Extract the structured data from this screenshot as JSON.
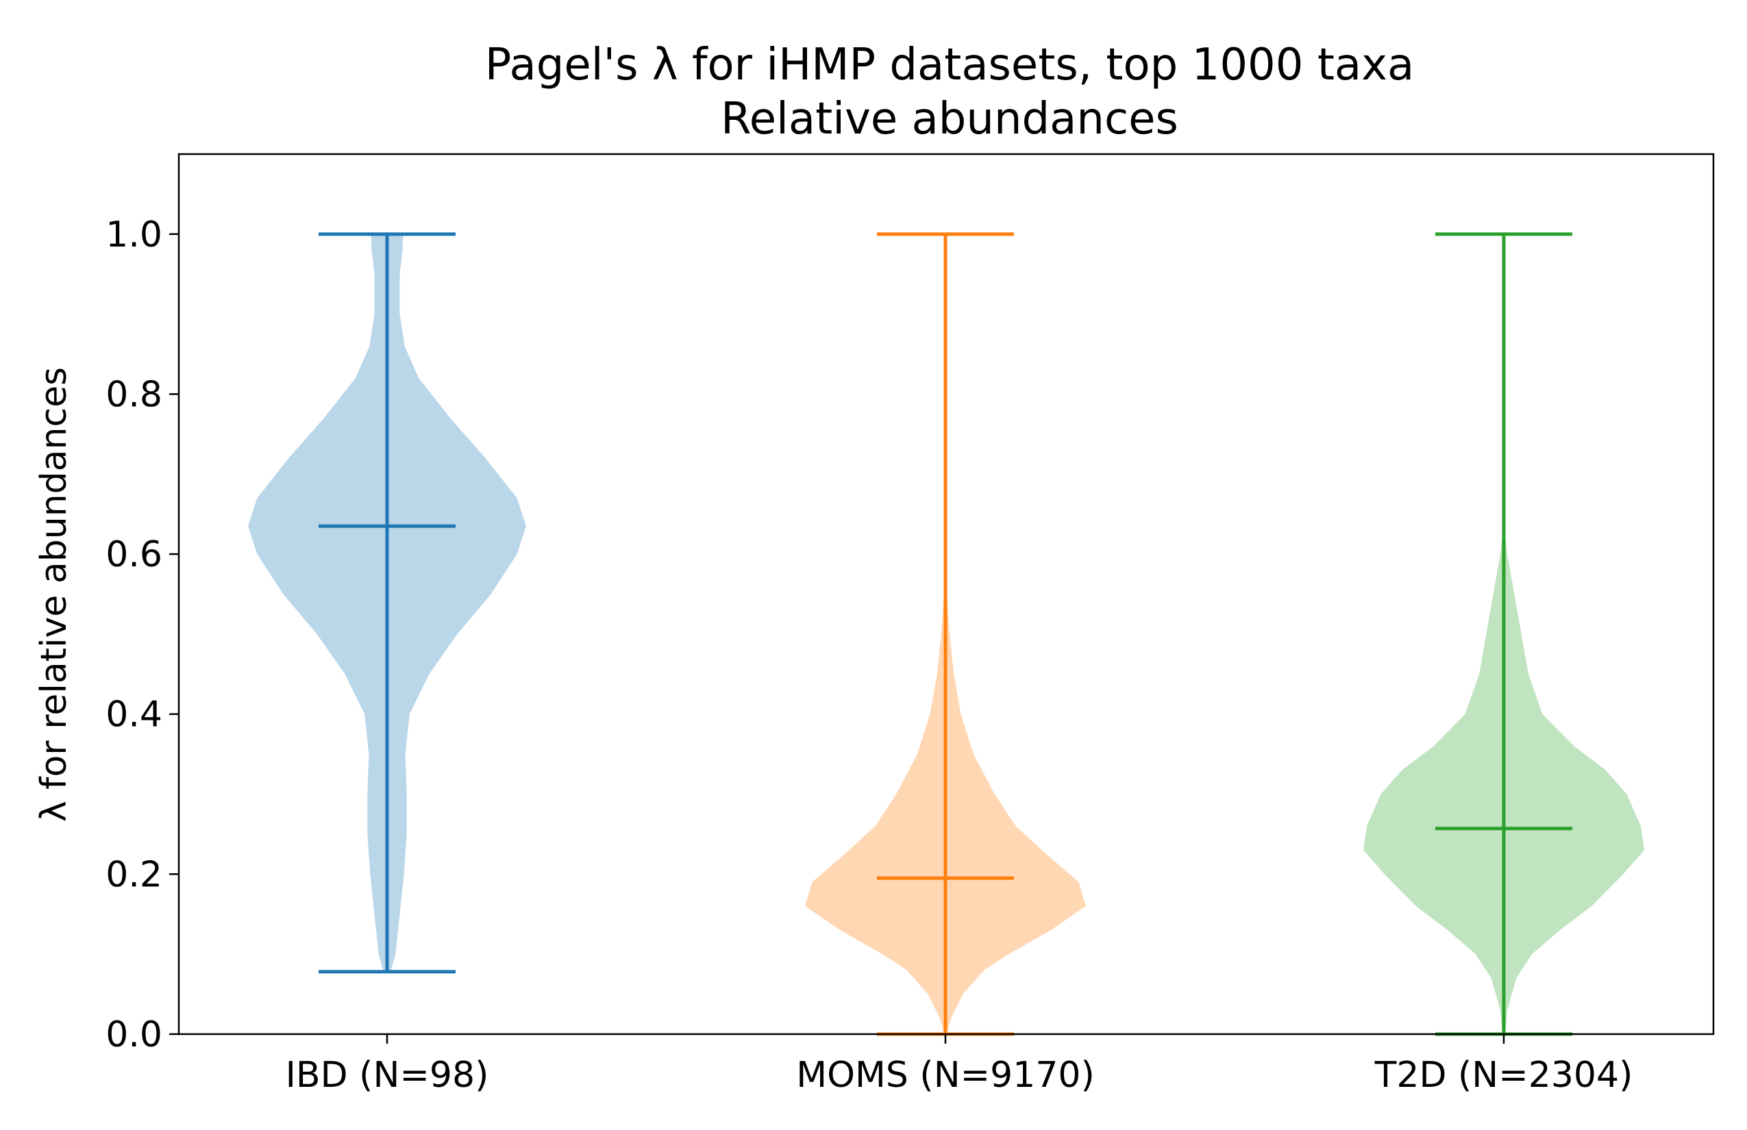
{
  "chart_data": {
    "type": "violin",
    "title": "Pagel's λ for iHMP datasets, top 1000 taxa",
    "subtitle": "Relative abundances",
    "xlabel": "",
    "ylabel": "λ for relative abundances",
    "ylim": [
      0.0,
      1.1
    ],
    "yticks": [
      "0.0",
      "0.2",
      "0.4",
      "0.6",
      "0.8",
      "1.0"
    ],
    "grid": false,
    "categories": [
      "IBD (N=98)",
      "MOMS (N=9170)",
      "T2D (N=2304)"
    ],
    "series": [
      {
        "category": "IBD (N=98)",
        "color": "#1f77b4",
        "fill": "#bad6e9",
        "min": 0.078,
        "max": 1.0,
        "median": 0.635,
        "density": [
          [
            0.078,
            0.005
          ],
          [
            0.1,
            0.012
          ],
          [
            0.15,
            0.018
          ],
          [
            0.2,
            0.024
          ],
          [
            0.25,
            0.028
          ],
          [
            0.3,
            0.028
          ],
          [
            0.35,
            0.026
          ],
          [
            0.4,
            0.032
          ],
          [
            0.45,
            0.06
          ],
          [
            0.5,
            0.1
          ],
          [
            0.55,
            0.148
          ],
          [
            0.6,
            0.185
          ],
          [
            0.635,
            0.198
          ],
          [
            0.67,
            0.185
          ],
          [
            0.72,
            0.14
          ],
          [
            0.77,
            0.09
          ],
          [
            0.82,
            0.045
          ],
          [
            0.86,
            0.025
          ],
          [
            0.9,
            0.018
          ],
          [
            0.95,
            0.018
          ],
          [
            0.98,
            0.022
          ],
          [
            1.0,
            0.023
          ]
        ]
      },
      {
        "category": "MOMS (N=9170)",
        "color": "#ff7f0e",
        "fill": "#ffd7b3",
        "min": 0.0,
        "max": 1.0,
        "median": 0.195,
        "density": [
          [
            0.0,
            0.002
          ],
          [
            0.02,
            0.008
          ],
          [
            0.05,
            0.025
          ],
          [
            0.08,
            0.055
          ],
          [
            0.1,
            0.09
          ],
          [
            0.13,
            0.15
          ],
          [
            0.16,
            0.2
          ],
          [
            0.19,
            0.19
          ],
          [
            0.22,
            0.15
          ],
          [
            0.26,
            0.1
          ],
          [
            0.3,
            0.07
          ],
          [
            0.35,
            0.04
          ],
          [
            0.4,
            0.022
          ],
          [
            0.45,
            0.012
          ],
          [
            0.5,
            0.006
          ],
          [
            0.55,
            0.002
          ],
          [
            0.58,
            0.0
          ]
        ]
      },
      {
        "category": "T2D (N=2304)",
        "color": "#2ca02c",
        "fill": "#c0e3c0",
        "min": 0.0,
        "max": 1.0,
        "median": 0.257,
        "density": [
          [
            0.0,
            0.002
          ],
          [
            0.03,
            0.005
          ],
          [
            0.07,
            0.018
          ],
          [
            0.1,
            0.04
          ],
          [
            0.13,
            0.08
          ],
          [
            0.16,
            0.125
          ],
          [
            0.2,
            0.17
          ],
          [
            0.23,
            0.2
          ],
          [
            0.26,
            0.195
          ],
          [
            0.3,
            0.175
          ],
          [
            0.33,
            0.145
          ],
          [
            0.36,
            0.1
          ],
          [
            0.4,
            0.055
          ],
          [
            0.45,
            0.035
          ],
          [
            0.5,
            0.025
          ],
          [
            0.55,
            0.015
          ],
          [
            0.6,
            0.005
          ],
          [
            0.64,
            0.0
          ]
        ]
      }
    ]
  }
}
